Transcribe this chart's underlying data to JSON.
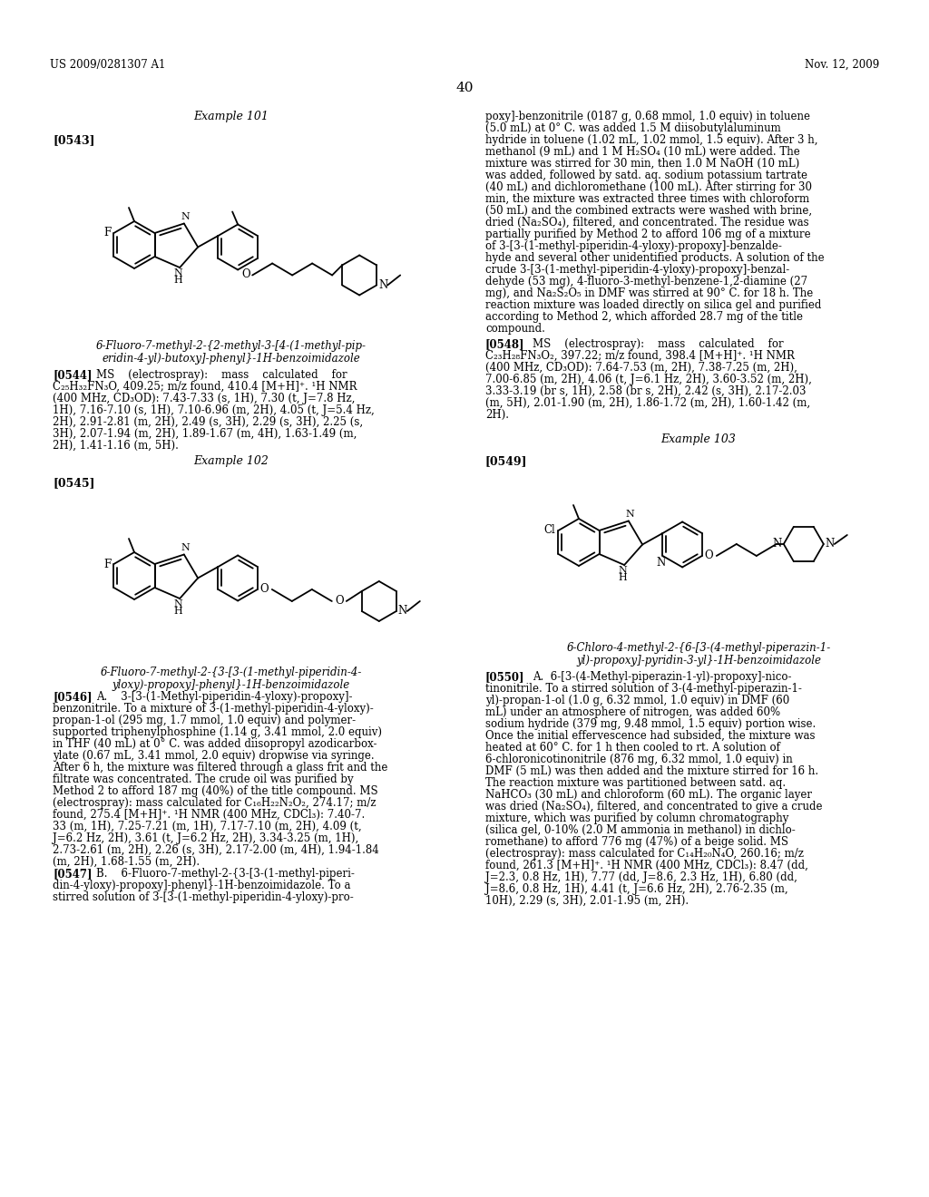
{
  "page_header_left": "US 2009/0281307 A1",
  "page_header_right": "Nov. 12, 2009",
  "page_number": "40",
  "background_color": "#ffffff",
  "text_color": "#000000",
  "example101_title": "Example 101",
  "example101_tag": "[0543]",
  "example102_title": "Example 102",
  "example102_tag": "[0545]",
  "example103_title": "Example 103",
  "example103_tag": "[0549]"
}
